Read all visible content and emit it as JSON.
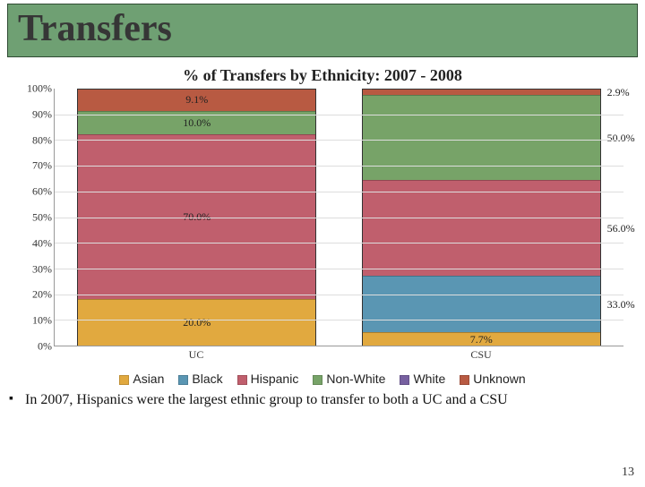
{
  "title": "Transfers",
  "subtitle": "% of Transfers by Ethnicity: 2007 - 2008",
  "chart": {
    "type": "stacked-bar-100",
    "y": {
      "min": 0,
      "max": 100,
      "step": 10,
      "fmt_suffix": "%"
    },
    "categories": [
      "UC",
      "CSU"
    ],
    "series": [
      {
        "name": "Asian",
        "color": "#e1a93f"
      },
      {
        "name": "Black",
        "color": "#5a96b3"
      },
      {
        "name": "Hispanic",
        "color": "#c05f6d"
      },
      {
        "name": "Non-White",
        "color": "#77a368"
      },
      {
        "name": "White",
        "color": "#7760a0"
      },
      {
        "name": "Unknown",
        "color": "#b85a42"
      }
    ],
    "stacks": {
      "UC": [
        {
          "series": "Asian",
          "value": 20.0,
          "label": "20.0%",
          "label_pos": "center"
        },
        {
          "series": "Hispanic",
          "value": 70.0,
          "label": "70.0%",
          "label_pos": "center"
        },
        {
          "series": "Non-White",
          "value": 10.0,
          "label": "10.0%",
          "label_pos": "center"
        },
        {
          "series": "Unknown",
          "value": 9.1,
          "label": "9.1%",
          "label_pos": "center",
          "overflow": true
        }
      ],
      "CSU": [
        {
          "series": "Asian",
          "value": 7.7,
          "label": "7.7%",
          "label_pos": "center"
        },
        {
          "series": "Black",
          "value": 33.0,
          "label": "33.0%",
          "label_pos": "right"
        },
        {
          "series": "Hispanic",
          "value": 56.0,
          "label": "56.0%",
          "label_pos": "right"
        },
        {
          "series": "Non-White",
          "value": 50.0,
          "label": "50.0%",
          "label_pos": "right"
        },
        {
          "series": "Unknown",
          "value": 2.9,
          "label": "2.9%",
          "label_pos": "right",
          "overflow": true
        }
      ]
    },
    "render_heights": {
      "UC": {
        "Asian": 18.3,
        "Hispanic": 64.2,
        "Non-White": 9.2,
        "Unknown": 8.3
      },
      "CSU": {
        "Asian": 5.1,
        "Black": 22.1,
        "Hispanic": 37.4,
        "Non-White": 33.4,
        "Unknown": 2.0
      }
    }
  },
  "legend": [
    "Asian",
    "Black",
    "Hispanic",
    "Non-White",
    "White",
    "Unknown"
  ],
  "bullet": "In 2007, Hispanics were the largest ethnic group to transfer to both a UC and a CSU",
  "page_number": "13"
}
